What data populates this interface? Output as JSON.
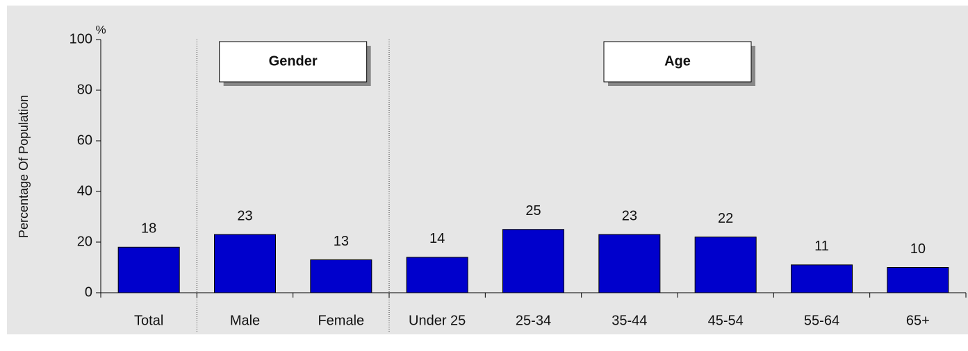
{
  "chart_data": {
    "type": "bar",
    "y_label": "Percentage Of Population",
    "y_unit": "%",
    "categories": [
      "Total",
      "Male",
      "Female",
      "Under 25",
      "25-34",
      "35-44",
      "45-54",
      "55-64",
      "65+"
    ],
    "values": [
      18,
      23,
      13,
      14,
      25,
      23,
      22,
      11,
      10
    ],
    "color": "#0000cc",
    "ylim": [
      0,
      100
    ],
    "yticks": [
      0,
      20,
      40,
      60,
      80,
      100
    ],
    "groups": [
      {
        "label": "Gender",
        "members": [
          "Male",
          "Female"
        ]
      },
      {
        "label": "Age",
        "members": [
          "Under 25",
          "25-34",
          "35-44",
          "45-54",
          "55-64",
          "65+"
        ]
      }
    ]
  }
}
